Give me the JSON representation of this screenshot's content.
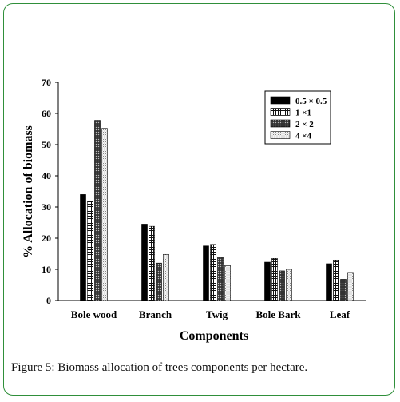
{
  "chart_data": {
    "type": "bar",
    "title": "",
    "xlabel": "Components",
    "ylabel": "% Allocation of biomass",
    "ylim": [
      0,
      70
    ],
    "yticks": [
      0,
      10,
      20,
      30,
      40,
      50,
      60,
      70
    ],
    "categories": [
      "Bole wood",
      "Branch",
      "Twig",
      "Bole Bark",
      "Leaf"
    ],
    "series": [
      {
        "name": "0.5 × 0.5",
        "values": [
          34,
          24.5,
          17.5,
          12.3,
          11.8
        ]
      },
      {
        "name": "1 ×1",
        "values": [
          31.8,
          23.8,
          18,
          13.5,
          13
        ]
      },
      {
        "name": "2 × 2",
        "values": [
          57.8,
          12,
          14,
          9.5,
          6.8
        ]
      },
      {
        "name": "4 ×4",
        "values": [
          55.2,
          14.8,
          11.2,
          10,
          9
        ]
      }
    ],
    "legend_position": "top-right",
    "grid": false
  },
  "caption": "Figure 5: Biomass allocation of trees components per hectare.",
  "colors": {
    "frame_border": "#2f8f3a",
    "series_fills": [
      "#000000",
      "url(#pat-grid)",
      "url(#pat-dark)",
      "url(#pat-dots)"
    ]
  }
}
